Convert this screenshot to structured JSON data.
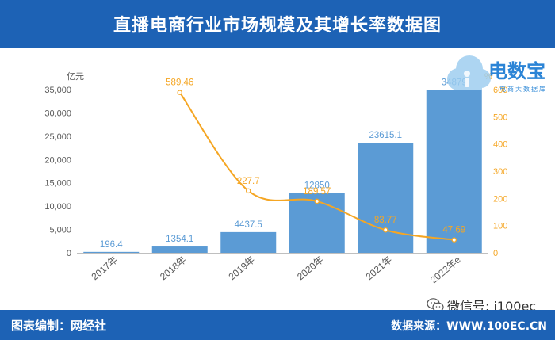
{
  "chart_data": {
    "type": "bar",
    "title": "直播电商行业市场规模及其增长率数据图",
    "categories": [
      "2017年",
      "2018年",
      "2019年",
      "2020年",
      "2021年",
      "2022年e"
    ],
    "series": [
      {
        "type": "bar",
        "values": [
          196.4,
          1354.1,
          4437.5,
          12850,
          23615.1,
          34879
        ]
      },
      {
        "type": "line",
        "smooth": true,
        "values": [
          null,
          589.46,
          227.7,
          189.57,
          83.77,
          47.69
        ]
      }
    ],
    "y_left": {
      "unit": "亿元",
      "range": [
        0,
        35000
      ],
      "ticks": [
        "0",
        "5,000",
        "10,000",
        "15,000",
        "20,000",
        "25,000",
        "30,000",
        "35,000"
      ]
    },
    "y_right": {
      "unit": "%",
      "range": [
        0,
        600
      ],
      "ticks": [
        "0",
        "100",
        "200",
        "300",
        "400",
        "500",
        "600"
      ]
    },
    "grid": false,
    "data_labels": true
  },
  "footer": {
    "compiler": "图表编制：网经社",
    "source": "数据来源：WWW.100EC.CN"
  },
  "watermark": {
    "wechat_text": "微信号: i100ec",
    "icon": "wechat-icon"
  },
  "logo": {
    "name": "电数宝",
    "tagline": "电商大数据库",
    "icon": "cloud-logo-icon"
  },
  "colors": {
    "banner": "#1d62b5",
    "bar": "#5b9bd5",
    "bar_label": "#5b9bd5",
    "line": "#f5a623",
    "axis_text": "#595959",
    "axis_line": "#bfbfbf"
  }
}
